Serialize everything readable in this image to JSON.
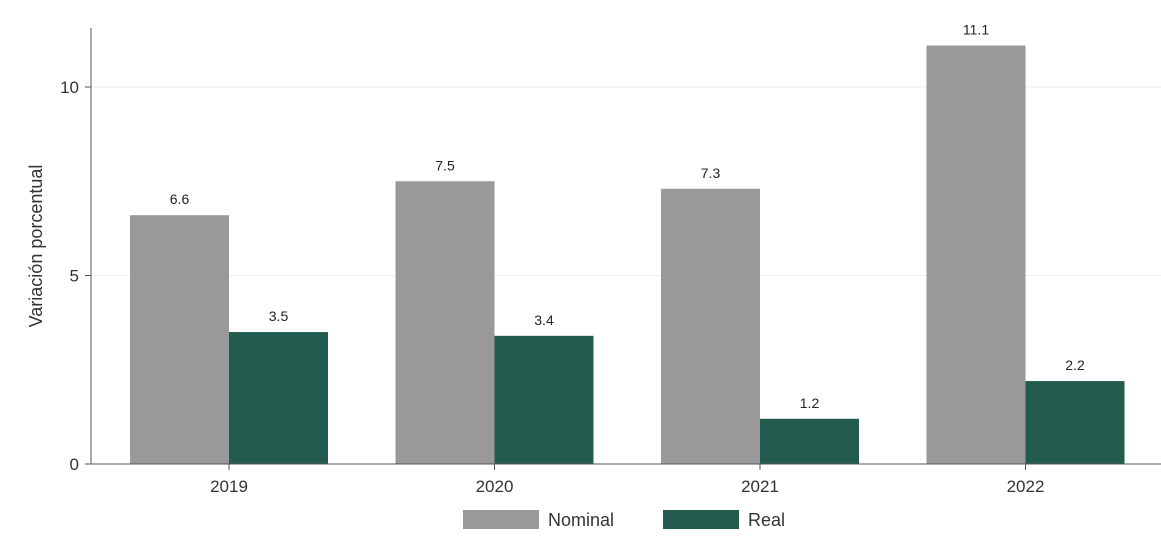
{
  "chart_data": {
    "type": "bar",
    "categories": [
      "2019",
      "2020",
      "2021",
      "2022"
    ],
    "series": [
      {
        "name": "Nominal",
        "values": [
          6.6,
          7.5,
          7.3,
          11.1
        ],
        "color": "#999999"
      },
      {
        "name": "Real",
        "values": [
          3.5,
          3.4,
          1.2,
          2.2
        ],
        "color": "#235b4e"
      }
    ],
    "data_labels": [
      [
        "6.6",
        "7.5",
        "7.3",
        "11.1"
      ],
      [
        "3.5",
        "3.4",
        "1.2",
        "2.2"
      ]
    ],
    "title": "",
    "xlabel": "",
    "ylabel": "Variación porcentual",
    "ylim": [
      0,
      11.6
    ],
    "yticks": [
      0,
      5,
      10
    ],
    "ytick_labels": [
      "0",
      "5",
      "10"
    ],
    "grid": "horizontal",
    "legend_position": "bottom-center"
  }
}
